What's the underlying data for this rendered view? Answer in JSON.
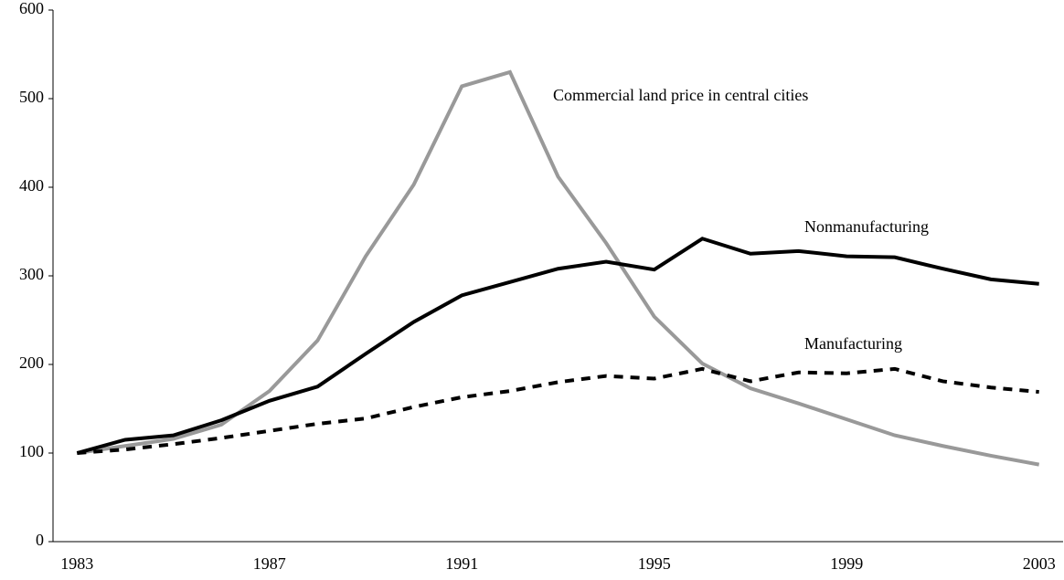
{
  "chart_data": {
    "type": "line",
    "x": [
      1983,
      1984,
      1985,
      1986,
      1987,
      1988,
      1989,
      1990,
      1991,
      1992,
      1993,
      1994,
      1995,
      1996,
      1997,
      1998,
      1999,
      2000,
      2001,
      2002,
      2003
    ],
    "series": [
      {
        "name": "Commercial land price in central cities",
        "color": "#999999",
        "dash": "solid",
        "values": [
          100,
          108,
          116,
          132,
          170,
          227,
          322,
          403,
          514,
          530,
          412,
          337,
          254,
          201,
          173,
          156,
          138,
          120,
          108,
          97,
          87
        ]
      },
      {
        "name": "Nonmanufacturing",
        "color": "#000000",
        "dash": "solid",
        "values": [
          100,
          115,
          120,
          137,
          159,
          175,
          212,
          248,
          278,
          293,
          308,
          316,
          307,
          342,
          325,
          328,
          322,
          321,
          308,
          296,
          291
        ]
      },
      {
        "name": "Manufacturing",
        "color": "#000000",
        "dash": "dashed",
        "values": [
          100,
          104,
          110,
          117,
          125,
          133,
          139,
          152,
          163,
          170,
          180,
          187,
          184,
          195,
          181,
          191,
          190,
          195,
          181,
          174,
          169
        ]
      }
    ],
    "xlim": [
      1982.5,
      2003.5
    ],
    "xticks": [
      1983,
      1987,
      1991,
      1995,
      1999,
      2003
    ],
    "ylim": [
      0,
      600
    ],
    "yticks": [
      0,
      100,
      200,
      300,
      400,
      500,
      600
    ],
    "grid": false
  }
}
